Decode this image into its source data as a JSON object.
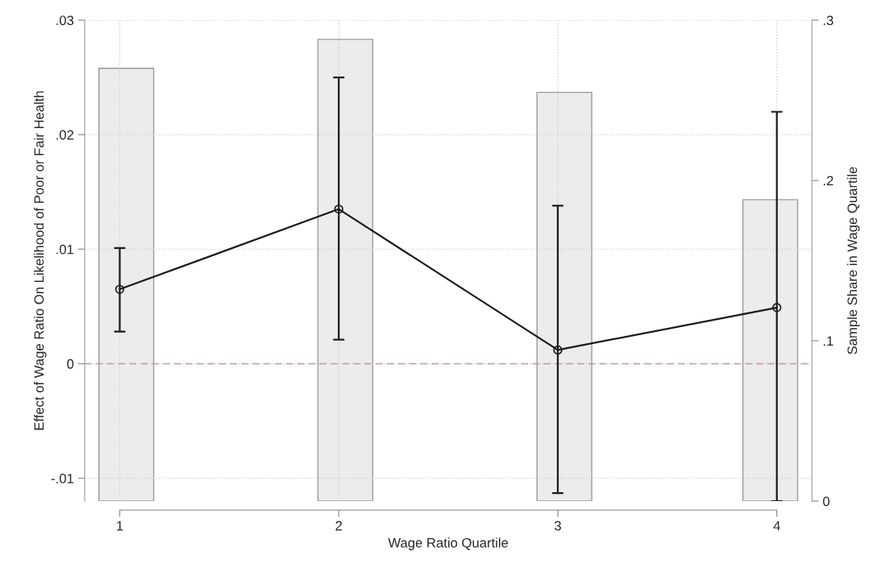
{
  "chart_data": {
    "type": "line",
    "xlabel": "Wage Ratio Quartile",
    "ylabel": "Effect of Wage Ratio On Likelihood of Poor or Fair Health",
    "y2label": "Sample Share in Wage Quartile",
    "xlim": [
      0.84,
      4.16
    ],
    "xticks": [
      1,
      2,
      3,
      4
    ],
    "ylim": [
      -0.012,
      0.03
    ],
    "yticks": [
      {
        "value": -0.01,
        "label": "-.01"
      },
      0,
      {
        "value": 0.01,
        "label": ".01"
      },
      {
        "value": 0.02,
        "label": ".02"
      },
      {
        "value": 0.03,
        "label": ".03"
      }
    ],
    "y2lim": [
      0,
      0.3
    ],
    "y2ticks": [
      0,
      {
        "value": 0.1,
        "label": ".1"
      },
      {
        "value": 0.2,
        "label": ".2"
      },
      {
        "value": 0.3,
        "label": ".3"
      }
    ],
    "grid": true,
    "legend": false,
    "series": [
      {
        "type": "bar",
        "axis": "y2",
        "color": "#ececec",
        "x": [
          1.03,
          2.03,
          3.03,
          3.97
        ],
        "values": [
          0.27,
          0.288,
          0.255,
          0.188
        ]
      },
      {
        "axis": "y",
        "color": "#1a1a1a",
        "marker": "circle",
        "x": [
          1,
          2,
          3,
          4
        ],
        "values": [
          0.0065,
          0.0135,
          0.0012,
          0.0049
        ],
        "errors": [
          [
            0.0028,
            0.0101
          ],
          [
            0.0021,
            0.025
          ],
          [
            -0.0113,
            0.0138
          ],
          [
            -0.012,
            0.022
          ]
        ]
      }
    ],
    "ref_lines": [
      {
        "axis": "y",
        "value": 0,
        "color": "#d4909c",
        "line_style": "dashed"
      }
    ]
  }
}
